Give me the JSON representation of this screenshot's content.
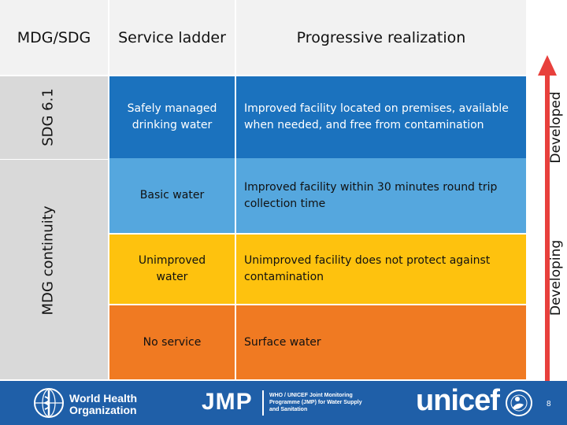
{
  "headers": {
    "mdg_sdg": "MDG/SDG",
    "service_ladder": "Service ladder",
    "progressive_realization": "Progressive realization"
  },
  "side_labels": {
    "sdg": "SDG 6.1",
    "mdg": "MDG continuity",
    "developed": "Developed",
    "developing": "Developing"
  },
  "rows": [
    {
      "ladder": "Safely managed drinking water",
      "description": "Improved facility located on premises, available when needed, and free from contamination",
      "color": "#1b72be"
    },
    {
      "ladder": "Basic water",
      "description": "Improved facility within 30 minutes round trip collection time",
      "color": "#55a7de"
    },
    {
      "ladder": "Unimproved water",
      "description": "Unimproved facility does not protect against contamination",
      "color": "#fec20e"
    },
    {
      "ladder": "No service",
      "description": "Surface water",
      "color": "#f07a22"
    }
  ],
  "colors": {
    "header_bg": "#f2f2f2",
    "sidebar_bg": "#d9d9d9",
    "footer_bg": "#1f5fa8",
    "arrow": "#e8403c"
  },
  "footer": {
    "who_line1": "World Health",
    "who_line2": "Organization",
    "jmp": "JMP",
    "jmp_desc": "WHO / UNICEF Joint Monitoring Programme (JMP) for Water Supply and Sanitation",
    "unicef": "unicef",
    "page_number": "8"
  }
}
